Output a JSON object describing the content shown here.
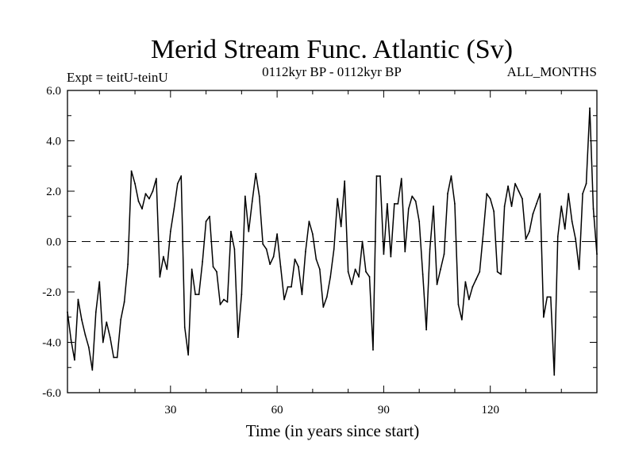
{
  "chart_data": {
    "type": "line",
    "title": "Merid Stream Func. Atlantic (Sv)",
    "subtitle_left": "Expt = teitU-teinU",
    "subtitle_center": "0112kyr BP - 0112kyr BP",
    "subtitle_right": "ALL_MONTHS",
    "xlabel": "Time (in years since start)",
    "ylabel": "",
    "xlim": [
      1,
      150
    ],
    "ylim": [
      -6,
      6
    ],
    "xticks": [
      30,
      60,
      90,
      120
    ],
    "xtick_labels": [
      "30",
      "60",
      "90",
      "120"
    ],
    "yticks": [
      -6,
      -4,
      -2,
      0,
      2,
      4,
      6
    ],
    "ytick_labels": [
      "-6.0",
      "-4.0",
      "-2.0",
      "0.0",
      "2.0",
      "4.0",
      "6.0"
    ],
    "reference_line": {
      "y": 0,
      "style": "dashed"
    },
    "series": [
      {
        "name": "Merid Stream Func. Atlantic",
        "color": "#000000",
        "x": [
          1,
          2,
          3,
          4,
          5,
          6,
          7,
          8,
          9,
          10,
          11,
          12,
          13,
          14,
          15,
          16,
          17,
          18,
          19,
          20,
          21,
          22,
          23,
          24,
          25,
          26,
          27,
          28,
          29,
          30,
          31,
          32,
          33,
          34,
          35,
          36,
          37,
          38,
          39,
          40,
          41,
          42,
          43,
          44,
          45,
          46,
          47,
          48,
          49,
          50,
          51,
          52,
          53,
          54,
          55,
          56,
          57,
          58,
          59,
          60,
          61,
          62,
          63,
          64,
          65,
          66,
          67,
          68,
          69,
          70,
          71,
          72,
          73,
          74,
          75,
          76,
          77,
          78,
          79,
          80,
          81,
          82,
          83,
          84,
          85,
          86,
          87,
          88,
          89,
          90,
          91,
          92,
          93,
          94,
          95,
          96,
          97,
          98,
          99,
          100,
          101,
          102,
          103,
          104,
          105,
          106,
          107,
          108,
          109,
          110,
          111,
          112,
          113,
          114,
          115,
          116,
          117,
          118,
          119,
          120,
          121,
          122,
          123,
          124,
          125,
          126,
          127,
          128,
          129,
          130,
          131,
          132,
          133,
          134,
          135,
          136,
          137,
          138,
          139,
          140,
          141,
          142,
          143,
          144,
          145,
          146,
          147,
          148,
          149,
          150
        ],
        "values": [
          -2.8,
          -3.9,
          -4.7,
          -2.3,
          -3.1,
          -3.7,
          -4.2,
          -5.1,
          -2.8,
          -1.6,
          -4.0,
          -3.2,
          -3.8,
          -4.6,
          -4.6,
          -3.1,
          -2.4,
          -0.9,
          2.8,
          2.3,
          1.6,
          1.3,
          1.9,
          1.7,
          2.0,
          2.5,
          -1.4,
          -0.6,
          -1.1,
          0.4,
          1.3,
          2.3,
          2.6,
          -3.4,
          -4.5,
          -1.1,
          -2.1,
          -2.1,
          -0.8,
          0.8,
          1.0,
          -1.0,
          -1.2,
          -2.5,
          -2.3,
          -2.4,
          0.4,
          -0.3,
          -3.8,
          -2.1,
          1.8,
          0.4,
          1.6,
          2.7,
          1.8,
          -0.1,
          -0.3,
          -0.9,
          -0.6,
          0.3,
          -1.0,
          -2.3,
          -1.8,
          -1.8,
          -0.7,
          -1.0,
          -2.1,
          -0.4,
          0.8,
          0.3,
          -0.7,
          -1.1,
          -2.6,
          -2.2,
          -1.4,
          -0.3,
          1.7,
          0.6,
          2.4,
          -1.2,
          -1.7,
          -1.1,
          -1.4,
          0.0,
          -1.2,
          -1.4,
          -4.3,
          2.6,
          2.6,
          -0.5,
          1.5,
          -0.6,
          1.5,
          1.5,
          2.5,
          -0.4,
          1.3,
          1.8,
          1.6,
          0.8,
          -1.3,
          -3.5,
          -0.3,
          1.4,
          -1.7,
          -1.1,
          -0.5,
          1.9,
          2.6,
          1.5,
          -2.5,
          -3.1,
          -1.6,
          -2.3,
          -1.8,
          -1.5,
          -1.2,
          0.3,
          1.9,
          1.7,
          1.2,
          -1.2,
          -1.3,
          1.4,
          2.2,
          1.4,
          2.3,
          2.0,
          1.7,
          0.1,
          0.4,
          1.1,
          1.5,
          1.9,
          -3.0,
          -2.2,
          -2.2,
          -5.3,
          0.2,
          1.4,
          0.5,
          1.9,
          0.8,
          0.1,
          -1.1,
          1.9,
          2.3,
          5.3,
          1.3,
          -0.5
        ]
      }
    ]
  }
}
